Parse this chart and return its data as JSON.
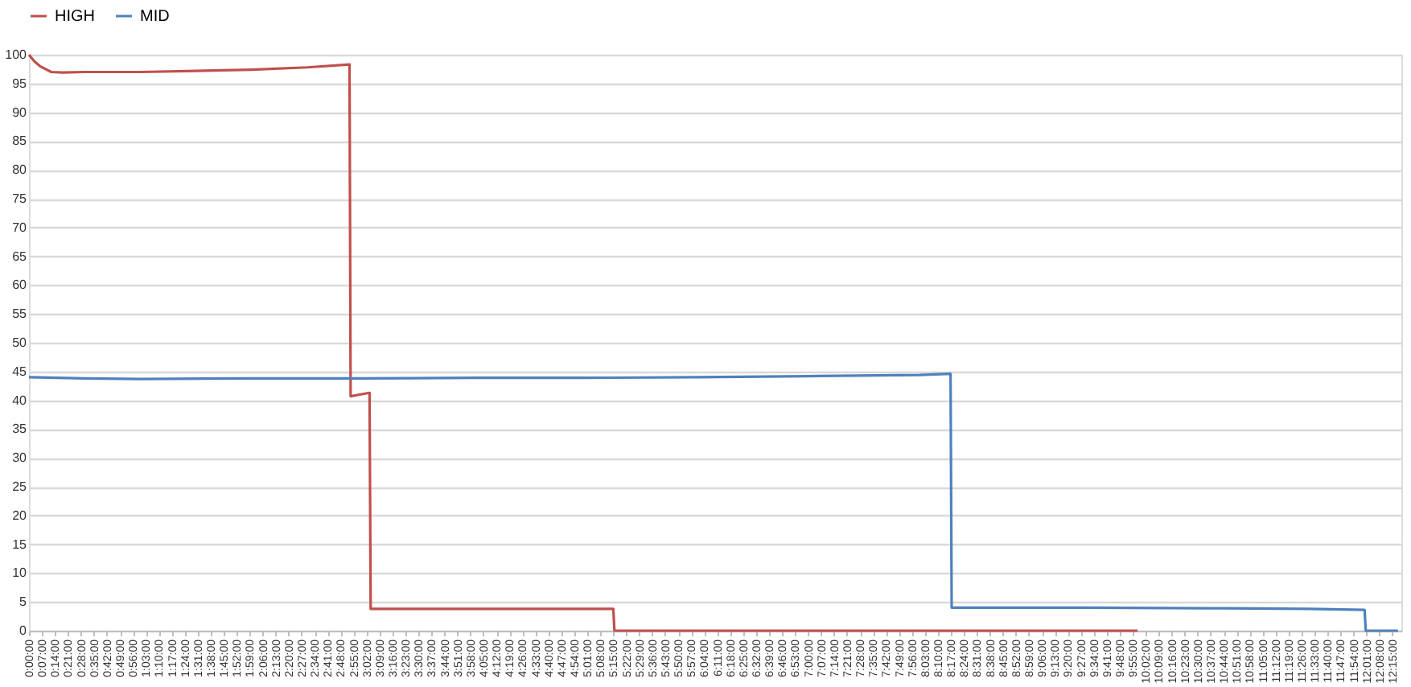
{
  "chart_data": {
    "type": "line",
    "series": [
      {
        "name": "HIGH",
        "color": "#c0504d",
        "x": [
          0,
          0.05,
          0.1,
          0.2,
          0.3,
          0.5,
          1.0,
          1.5,
          2.0,
          2.5,
          2.88,
          2.89,
          3.0,
          3.06,
          3.07,
          4.0,
          5.0,
          5.25,
          5.26,
          6.0,
          8.0,
          9.96
        ],
        "values": [
          100,
          98.8,
          98,
          97,
          96.9,
          97,
          97,
          97.2,
          97.4,
          97.8,
          98.3,
          40.7,
          41.1,
          41.3,
          3.8,
          3.8,
          3.8,
          3.8,
          0,
          0,
          0,
          0
        ]
      },
      {
        "name": "MID",
        "color": "#4f81bd",
        "x": [
          0,
          0.5,
          1.0,
          2.0,
          3.0,
          4.0,
          5.0,
          6.0,
          7.0,
          8.0,
          8.28,
          8.29,
          9.5,
          10.6,
          11.5,
          12.0,
          12.01,
          12.3
        ],
        "values": [
          44,
          43.8,
          43.7,
          43.8,
          43.8,
          43.9,
          43.9,
          44.0,
          44.2,
          44.4,
          44.6,
          4.0,
          4.0,
          3.9,
          3.8,
          3.6,
          0,
          0
        ]
      }
    ],
    "xlim": [
      0,
      12.33
    ],
    "ylim": [
      0,
      100
    ],
    "yticks": [
      0,
      5,
      10,
      15,
      20,
      25,
      30,
      35,
      40,
      45,
      50,
      55,
      60,
      65,
      70,
      75,
      80,
      85,
      90,
      95,
      100
    ],
    "xticks": [
      {
        "value": 0,
        "label": "0:00:00"
      },
      {
        "value": 0.1167,
        "label": "0:07:00"
      },
      {
        "value": 0.2333,
        "label": "0:14:00"
      },
      {
        "value": 0.35,
        "label": "0:21:00"
      },
      {
        "value": 0.4667,
        "label": "0:28:00"
      },
      {
        "value": 0.5833,
        "label": "0:35:00"
      },
      {
        "value": 0.7,
        "label": "0:42:00"
      },
      {
        "value": 0.8167,
        "label": "0:49:00"
      },
      {
        "value": 0.9333,
        "label": "0:56:00"
      },
      {
        "value": 1.05,
        "label": "1:03:00"
      },
      {
        "value": 1.1667,
        "label": "1:10:00"
      },
      {
        "value": 1.2833,
        "label": "1:17:00"
      },
      {
        "value": 1.4,
        "label": "1:24:00"
      },
      {
        "value": 1.5167,
        "label": "1:31:00"
      },
      {
        "value": 1.6333,
        "label": "1:38:00"
      },
      {
        "value": 1.75,
        "label": "1:45:00"
      },
      {
        "value": 1.8667,
        "label": "1:52:00"
      },
      {
        "value": 1.9833,
        "label": "1:59:00"
      },
      {
        "value": 2.1,
        "label": "2:06:00"
      },
      {
        "value": 2.2167,
        "label": "2:13:00"
      },
      {
        "value": 2.3333,
        "label": "2:20:00"
      },
      {
        "value": 2.45,
        "label": "2:27:00"
      },
      {
        "value": 2.5667,
        "label": "2:34:00"
      },
      {
        "value": 2.6833,
        "label": "2:41:00"
      },
      {
        "value": 2.8,
        "label": "2:48:00"
      },
      {
        "value": 2.9167,
        "label": "2:55:00"
      },
      {
        "value": 3.0333,
        "label": "3:02:00"
      },
      {
        "value": 3.15,
        "label": "3:09:00"
      },
      {
        "value": 3.2667,
        "label": "3:16:00"
      },
      {
        "value": 3.3833,
        "label": "3:23:00"
      },
      {
        "value": 3.5,
        "label": "3:30:00"
      },
      {
        "value": 3.6167,
        "label": "3:37:00"
      },
      {
        "value": 3.7333,
        "label": "3:44:00"
      },
      {
        "value": 3.85,
        "label": "3:51:00"
      },
      {
        "value": 3.9667,
        "label": "3:58:00"
      },
      {
        "value": 4.0833,
        "label": "4:05:00"
      },
      {
        "value": 4.2,
        "label": "4:12:00"
      },
      {
        "value": 4.3167,
        "label": "4:19:00"
      },
      {
        "value": 4.4333,
        "label": "4:26:00"
      },
      {
        "value": 4.55,
        "label": "4:33:00"
      },
      {
        "value": 4.6667,
        "label": "4:40:00"
      },
      {
        "value": 4.7833,
        "label": "4:47:00"
      },
      {
        "value": 4.9,
        "label": "4:54:00"
      },
      {
        "value": 5.0167,
        "label": "5:01:00"
      },
      {
        "value": 5.1333,
        "label": "5:08:00"
      },
      {
        "value": 5.25,
        "label": "5:15:00"
      },
      {
        "value": 5.3667,
        "label": "5:22:00"
      },
      {
        "value": 5.4833,
        "label": "5:29:00"
      },
      {
        "value": 5.6,
        "label": "5:36:00"
      },
      {
        "value": 5.7167,
        "label": "5:43:00"
      },
      {
        "value": 5.8333,
        "label": "5:50:00"
      },
      {
        "value": 5.95,
        "label": "5:57:00"
      },
      {
        "value": 6.0667,
        "label": "6:04:00"
      },
      {
        "value": 6.1833,
        "label": "6:11:00"
      },
      {
        "value": 6.3,
        "label": "6:18:00"
      },
      {
        "value": 6.4167,
        "label": "6:25:00"
      },
      {
        "value": 6.5333,
        "label": "6:32:00"
      },
      {
        "value": 6.65,
        "label": "6:39:00"
      },
      {
        "value": 6.7667,
        "label": "6:46:00"
      },
      {
        "value": 6.8833,
        "label": "6:53:00"
      },
      {
        "value": 7,
        "label": "7:00:00"
      },
      {
        "value": 7.1167,
        "label": "7:07:00"
      },
      {
        "value": 7.2333,
        "label": "7:14:00"
      },
      {
        "value": 7.35,
        "label": "7:21:00"
      },
      {
        "value": 7.4667,
        "label": "7:28:00"
      },
      {
        "value": 7.5833,
        "label": "7:35:00"
      },
      {
        "value": 7.7,
        "label": "7:42:00"
      },
      {
        "value": 7.8167,
        "label": "7:49:00"
      },
      {
        "value": 7.9333,
        "label": "7:56:00"
      },
      {
        "value": 8.05,
        "label": "8:03:00"
      },
      {
        "value": 8.1667,
        "label": "8:10:00"
      },
      {
        "value": 8.2833,
        "label": "8:17:00"
      },
      {
        "value": 8.4,
        "label": "8:24:00"
      },
      {
        "value": 8.5167,
        "label": "8:31:00"
      },
      {
        "value": 8.6333,
        "label": "8:38:00"
      },
      {
        "value": 8.75,
        "label": "8:45:00"
      },
      {
        "value": 8.8667,
        "label": "8:52:00"
      },
      {
        "value": 8.9833,
        "label": "8:59:00"
      },
      {
        "value": 9.1,
        "label": "9:06:00"
      },
      {
        "value": 9.2167,
        "label": "9:13:00"
      },
      {
        "value": 9.3333,
        "label": "9:20:00"
      },
      {
        "value": 9.45,
        "label": "9:27:00"
      },
      {
        "value": 9.5667,
        "label": "9:34:00"
      },
      {
        "value": 9.6833,
        "label": "9:41:00"
      },
      {
        "value": 9.8,
        "label": "9:48:00"
      },
      {
        "value": 9.9167,
        "label": "9:55:00"
      },
      {
        "value": 10.0333,
        "label": "10:02:00"
      },
      {
        "value": 10.15,
        "label": "10:09:00"
      },
      {
        "value": 10.2667,
        "label": "10:16:00"
      },
      {
        "value": 10.3833,
        "label": "10:23:00"
      },
      {
        "value": 10.5,
        "label": "10:30:00"
      },
      {
        "value": 10.6167,
        "label": "10:37:00"
      },
      {
        "value": 10.7333,
        "label": "10:44:00"
      },
      {
        "value": 10.85,
        "label": "10:51:00"
      },
      {
        "value": 10.9667,
        "label": "10:58:00"
      },
      {
        "value": 11.0833,
        "label": "11:05:00"
      },
      {
        "value": 11.2,
        "label": "11:12:00"
      },
      {
        "value": 11.3167,
        "label": "11:19:00"
      },
      {
        "value": 11.4333,
        "label": "11:26:00"
      },
      {
        "value": 11.55,
        "label": "11:33:00"
      },
      {
        "value": 11.6667,
        "label": "11:40:00"
      },
      {
        "value": 11.7833,
        "label": "11:47:00"
      },
      {
        "value": 11.9,
        "label": "11:54:00"
      },
      {
        "value": 12.0167,
        "label": "12:01:00"
      },
      {
        "value": 12.1333,
        "label": "12:08:00"
      },
      {
        "value": 12.25,
        "label": "12:15:00"
      }
    ],
    "grid": "y",
    "legend": "top",
    "marker": "none",
    "line_style": "solid"
  }
}
